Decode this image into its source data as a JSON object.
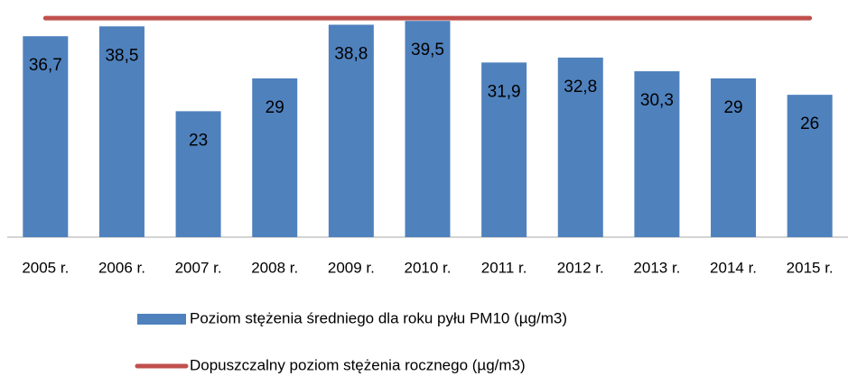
{
  "chart_data": {
    "type": "bar",
    "categories": [
      "2005 r.",
      "2006 r.",
      "2007 r.",
      "2008 r.",
      "2009 r.",
      "2010 r.",
      "2011 r.",
      "2012 r.",
      "2013 r.",
      "2014 r.",
      "2015 r."
    ],
    "ylim": [
      0,
      42
    ],
    "series": [
      {
        "name": "Poziom stężenia średniego dla roku pyłu PM10 (µg/m3)",
        "type": "bar",
        "color": "#4f81bd",
        "values": [
          36.7,
          38.5,
          23,
          29,
          38.8,
          39.5,
          31.9,
          32.8,
          30.3,
          29,
          26
        ],
        "value_labels": [
          "36,7",
          "38,5",
          "23",
          "29",
          "38,8",
          "39,5",
          "31,9",
          "32,8",
          "30,3",
          "29",
          "26"
        ]
      },
      {
        "name": "Dopuszczalny poziom stężenia rocznego (µg/m3)",
        "type": "line",
        "color": "#c0504d",
        "values": [
          40,
          40,
          40,
          40,
          40,
          40,
          40,
          40,
          40,
          40,
          40
        ]
      }
    ]
  }
}
